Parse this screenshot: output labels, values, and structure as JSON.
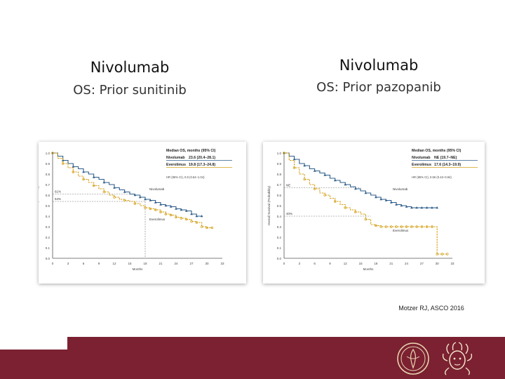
{
  "colors": {
    "nivolumab": "#2e5d8a",
    "everolimus": "#d4a017",
    "brand": "#7b2131"
  },
  "left": {
    "title": "Nivolumab",
    "subtitle": "OS: Prior sunitinib",
    "chart_data": {
      "type": "line",
      "title": "Median OS, months (95% CI)",
      "xlabel": "Months",
      "ylabel": "Overall Survival (Probability)",
      "xlim": [
        0,
        33
      ],
      "ylim": [
        0,
        1
      ],
      "xticks": [
        "0",
        "3",
        "6",
        "9",
        "12",
        "15",
        "18",
        "21",
        "24",
        "27",
        "30",
        "33"
      ],
      "yticks": [
        "0.0",
        "0.1",
        "0.2",
        "0.3",
        "0.4",
        "0.5",
        "0.6",
        "0.7",
        "0.8",
        "0.9",
        "1.0"
      ],
      "legend": [
        {
          "name": "Nivolumab",
          "value": "23.6 (20.4–28.1)"
        },
        {
          "name": "Everolimus",
          "value": "19.8 (17.3–24.8)"
        }
      ],
      "hr_text": "HR (95% CI), 0.8 (0.64–1.04)",
      "ref_labels": [
        "61%",
        "54%"
      ],
      "curve_labels": [
        "Nivolumab",
        "Everolimus"
      ],
      "series": [
        {
          "name": "Nivolumab",
          "x": [
            0,
            1,
            2,
            3,
            4,
            5,
            6,
            7,
            8,
            9,
            10,
            11,
            12,
            13,
            14,
            15,
            16,
            17,
            18,
            19,
            20,
            21,
            22,
            23,
            24,
            25,
            26,
            27,
            28,
            29
          ],
          "y": [
            1.0,
            0.97,
            0.93,
            0.9,
            0.87,
            0.85,
            0.82,
            0.8,
            0.77,
            0.75,
            0.72,
            0.7,
            0.67,
            0.65,
            0.63,
            0.61,
            0.6,
            0.58,
            0.56,
            0.55,
            0.53,
            0.51,
            0.5,
            0.49,
            0.47,
            0.46,
            0.45,
            0.42,
            0.4,
            0.4
          ]
        },
        {
          "name": "Everolimus",
          "x": [
            0,
            1,
            2,
            3,
            4,
            5,
            6,
            7,
            8,
            9,
            10,
            11,
            12,
            13,
            14,
            15,
            16,
            17,
            18,
            19,
            20,
            21,
            22,
            23,
            24,
            25,
            26,
            27,
            28,
            29,
            30,
            31
          ],
          "y": [
            1.0,
            0.95,
            0.9,
            0.86,
            0.82,
            0.78,
            0.75,
            0.72,
            0.69,
            0.66,
            0.63,
            0.6,
            0.58,
            0.56,
            0.55,
            0.54,
            0.52,
            0.5,
            0.48,
            0.47,
            0.46,
            0.44,
            0.42,
            0.41,
            0.39,
            0.38,
            0.37,
            0.35,
            0.34,
            0.3,
            0.29,
            0.29
          ]
        }
      ],
      "ref_lines": [
        {
          "y": 0.61,
          "x_end": 15
        },
        {
          "y": 0.54,
          "x_end": 18
        }
      ],
      "vline_x": 18
    }
  },
  "right": {
    "title": "Nivolumab",
    "subtitle": "OS: Prior pazopanib",
    "chart_data": {
      "type": "line",
      "title": "Median OS, months (95% CI)",
      "xlabel": "Months",
      "ylabel": "Overall Survival (Probability)",
      "xlim": [
        0,
        33
      ],
      "ylim": [
        0,
        1
      ],
      "xticks": [
        "0",
        "3",
        "6",
        "9",
        "12",
        "15",
        "18",
        "21",
        "24",
        "27",
        "30",
        "33"
      ],
      "yticks": [
        "0.0",
        "0.1",
        "0.2",
        "0.3",
        "0.4",
        "0.5",
        "0.6",
        "0.7",
        "0.8",
        "0.9",
        "1.0"
      ],
      "legend": [
        {
          "name": "Nivolumab",
          "value": "NE (19.7–NE)"
        },
        {
          "name": "Everolimus",
          "value": "17.6 (14.3–19.9)"
        }
      ],
      "hr_text": "HR (95% CI), 0.56 (0.42–0.94)",
      "ref_labels": [
        "NE",
        "40%"
      ],
      "curve_labels": [
        "Nivolumab",
        "Everolimus"
      ],
      "series": [
        {
          "name": "Nivolumab",
          "x": [
            0,
            1,
            2,
            3,
            4,
            5,
            6,
            7,
            8,
            9,
            10,
            11,
            12,
            13,
            14,
            15,
            16,
            17,
            18,
            19,
            20,
            21,
            22,
            23,
            24,
            25,
            26,
            27,
            28,
            29,
            30
          ],
          "y": [
            1.0,
            0.97,
            0.94,
            0.9,
            0.88,
            0.85,
            0.83,
            0.81,
            0.79,
            0.76,
            0.74,
            0.72,
            0.7,
            0.68,
            0.66,
            0.64,
            0.62,
            0.6,
            0.58,
            0.56,
            0.55,
            0.53,
            0.51,
            0.5,
            0.49,
            0.48,
            0.48,
            0.48,
            0.48,
            0.48,
            0.48
          ]
        },
        {
          "name": "Everolimus",
          "x": [
            0,
            1,
            2,
            3,
            4,
            5,
            6,
            7,
            8,
            9,
            10,
            11,
            12,
            13,
            14,
            15,
            16,
            17,
            18,
            19,
            20,
            21,
            22,
            23,
            24,
            25,
            26,
            27,
            28,
            29,
            30,
            31,
            32
          ],
          "y": [
            1.0,
            0.93,
            0.86,
            0.8,
            0.75,
            0.7,
            0.66,
            0.62,
            0.6,
            0.57,
            0.54,
            0.51,
            0.48,
            0.46,
            0.44,
            0.42,
            0.37,
            0.32,
            0.31,
            0.3,
            0.3,
            0.3,
            0.3,
            0.3,
            0.3,
            0.3,
            0.3,
            0.3,
            0.3,
            0.3,
            0.04,
            0.04,
            0.04
          ]
        }
      ],
      "ref_lines": [
        {
          "y": 0.67,
          "x_end": 15
        },
        {
          "y": 0.4,
          "x_end": 17
        }
      ],
      "vline_x": null
    }
  },
  "citation": "Motzer RJ, ASCO 2016"
}
